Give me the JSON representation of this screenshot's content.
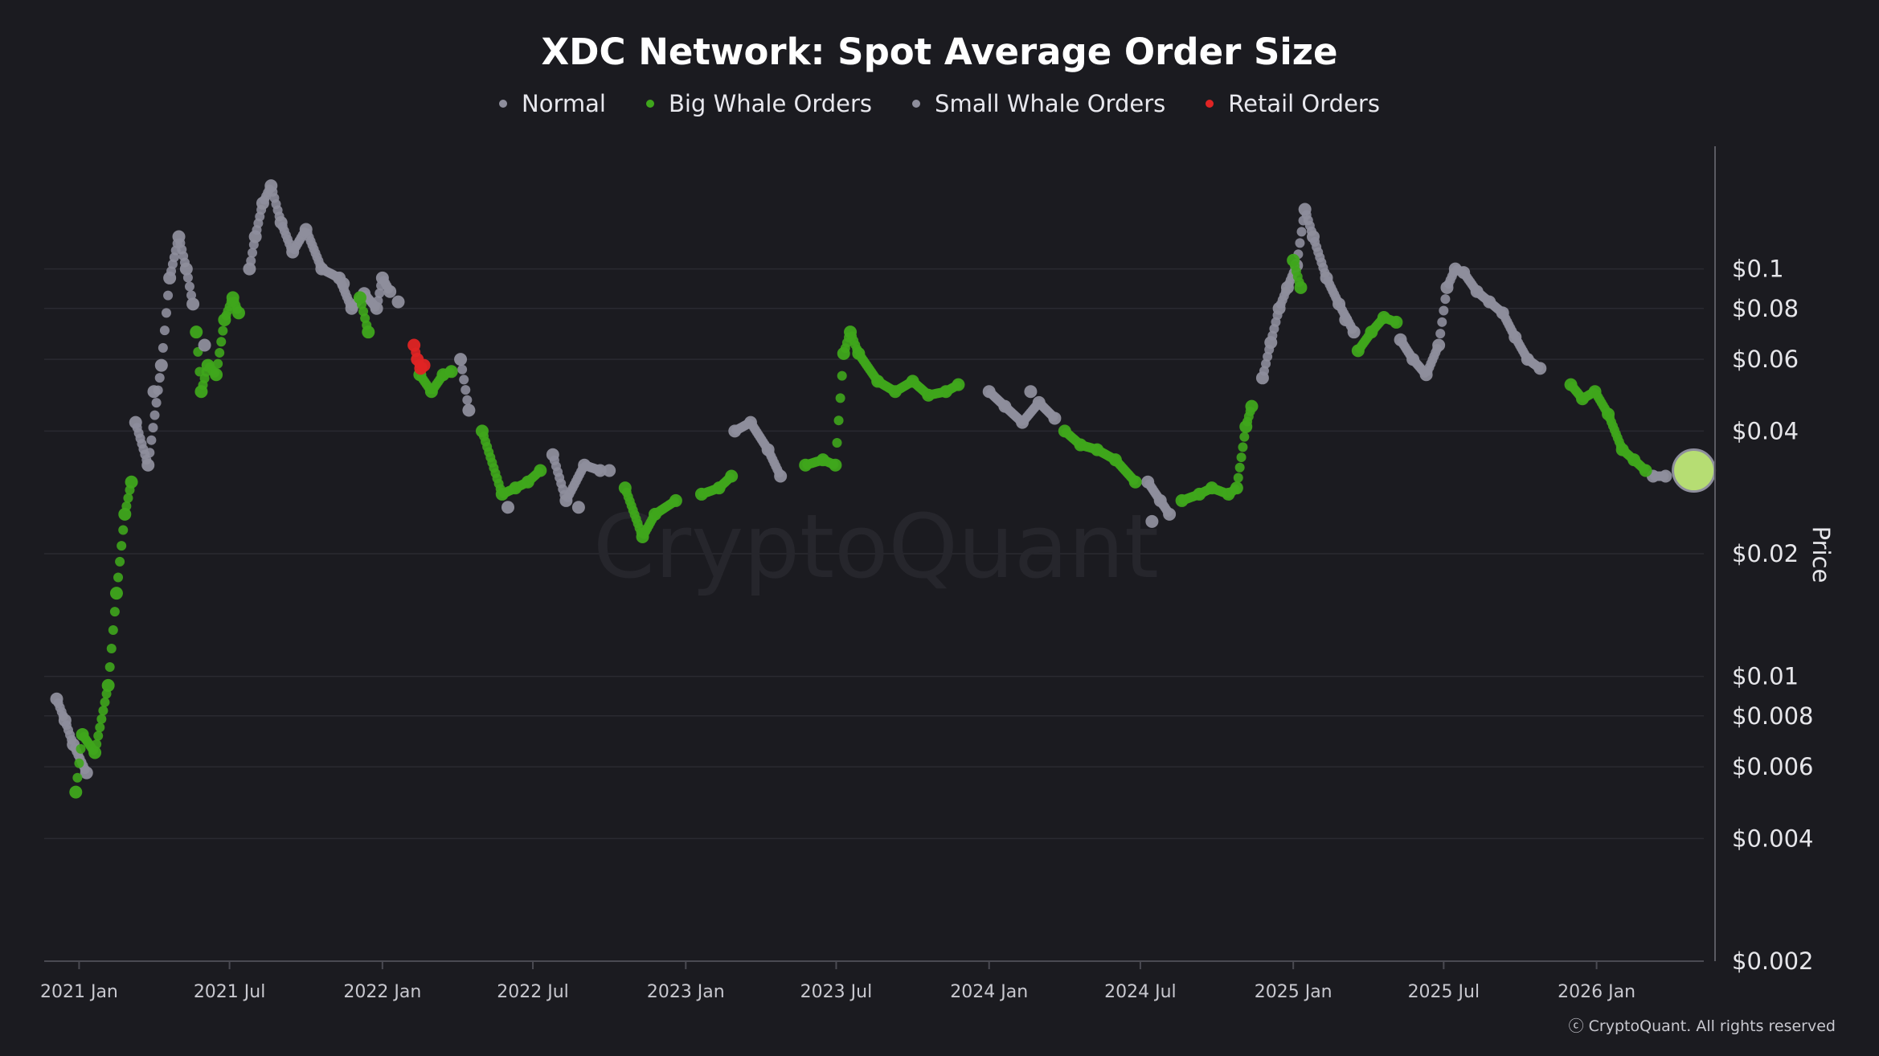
{
  "chart_data": {
    "type": "scatter",
    "title": "XDC Network: Spot Average Order Size",
    "ylabel": "Price",
    "yscale": "log",
    "ylim": [
      0.002,
      0.2
    ],
    "xlim": [
      "2020-11-20",
      "2026-05-10"
    ],
    "y_ticks": [
      {
        "value": 0.1,
        "label": "$0.1"
      },
      {
        "value": 0.08,
        "label": "$0.08"
      },
      {
        "value": 0.06,
        "label": "$0.06"
      },
      {
        "value": 0.04,
        "label": "$0.04"
      },
      {
        "value": 0.02,
        "label": "$0.02"
      },
      {
        "value": 0.01,
        "label": "$0.01"
      },
      {
        "value": 0.008,
        "label": "$0.008"
      },
      {
        "value": 0.006,
        "label": "$0.006"
      },
      {
        "value": 0.004,
        "label": "$0.004"
      },
      {
        "value": 0.002,
        "label": "$0.002"
      }
    ],
    "x_ticks": [
      {
        "date": "2021-01-01",
        "label": "2021 Jan"
      },
      {
        "date": "2021-07-01",
        "label": "2021 Jul"
      },
      {
        "date": "2022-01-01",
        "label": "2022 Jan"
      },
      {
        "date": "2022-07-01",
        "label": "2022 Jul"
      },
      {
        "date": "2023-01-01",
        "label": "2023 Jan"
      },
      {
        "date": "2023-07-01",
        "label": "2023 Jul"
      },
      {
        "date": "2024-01-01",
        "label": "2024 Jan"
      },
      {
        "date": "2024-07-01",
        "label": "2024 Jul"
      },
      {
        "date": "2025-01-01",
        "label": "2025 Jan"
      },
      {
        "date": "2025-07-01",
        "label": "2025 Jul"
      },
      {
        "date": "2026-01-01",
        "label": "2026 Jan"
      }
    ],
    "legend": [
      {
        "name": "Normal",
        "color": "#8e8e9c"
      },
      {
        "name": "Big Whale Orders",
        "color": "#3fa61c"
      },
      {
        "name": "Small Whale Orders",
        "color": "#8e8e9c"
      },
      {
        "name": "Retail Orders",
        "color": "#e02424"
      }
    ],
    "series": [
      {
        "name": "Normal",
        "color": "#8e8e9c",
        "points": [
          [
            "2020-12-05",
            0.0088
          ],
          [
            "2020-12-15",
            0.0078
          ],
          [
            "2020-12-25",
            0.0068
          ],
          [
            "2021-01-10",
            0.0058
          ],
          [
            "2021-03-10",
            0.042
          ],
          [
            "2021-03-25",
            0.033
          ],
          [
            "2021-04-10",
            0.058
          ],
          [
            "2021-04-20",
            0.095
          ],
          [
            "2021-05-01",
            0.12
          ],
          [
            "2021-05-10",
            0.1
          ],
          [
            "2021-05-18",
            0.082
          ],
          [
            "2021-07-25",
            0.1
          ],
          [
            "2021-08-01",
            0.12
          ],
          [
            "2021-08-10",
            0.145
          ],
          [
            "2021-08-20",
            0.16
          ],
          [
            "2021-09-01",
            0.13
          ],
          [
            "2021-09-15",
            0.11
          ],
          [
            "2021-10-01",
            0.125
          ],
          [
            "2021-10-20",
            0.1
          ],
          [
            "2021-11-10",
            0.095
          ],
          [
            "2021-11-25",
            0.08
          ],
          [
            "2021-12-10",
            0.087
          ],
          [
            "2021-12-25",
            0.08
          ],
          [
            "2022-01-01",
            0.095
          ],
          [
            "2022-01-10",
            0.088
          ],
          [
            "2022-04-05",
            0.06
          ],
          [
            "2022-04-15",
            0.045
          ],
          [
            "2022-07-25",
            0.035
          ],
          [
            "2022-08-10",
            0.027
          ],
          [
            "2022-09-01",
            0.033
          ],
          [
            "2022-09-20",
            0.032
          ],
          [
            "2023-03-01",
            0.04
          ],
          [
            "2023-03-20",
            0.042
          ],
          [
            "2023-04-10",
            0.036
          ],
          [
            "2023-04-25",
            0.031
          ],
          [
            "2024-01-01",
            0.05
          ],
          [
            "2024-01-20",
            0.046
          ],
          [
            "2024-02-10",
            0.042
          ],
          [
            "2024-03-01",
            0.047
          ],
          [
            "2024-03-20",
            0.043
          ],
          [
            "2024-07-10",
            0.03
          ],
          [
            "2024-07-25",
            0.027
          ],
          [
            "2024-08-05",
            0.025
          ],
          [
            "2024-11-25",
            0.054
          ],
          [
            "2024-12-05",
            0.066
          ],
          [
            "2024-12-15",
            0.08
          ],
          [
            "2024-12-25",
            0.09
          ],
          [
            "2025-01-05",
            0.102
          ],
          [
            "2025-01-15",
            0.14
          ],
          [
            "2025-01-25",
            0.12
          ],
          [
            "2025-02-10",
            0.095
          ],
          [
            "2025-02-25",
            0.082
          ],
          [
            "2025-03-15",
            0.07
          ],
          [
            "2025-05-10",
            0.067
          ],
          [
            "2025-05-25",
            0.06
          ],
          [
            "2025-06-10",
            0.055
          ],
          [
            "2025-06-25",
            0.065
          ],
          [
            "2025-07-05",
            0.09
          ],
          [
            "2025-07-15",
            0.1
          ],
          [
            "2025-07-25",
            0.098
          ],
          [
            "2025-08-10",
            0.088
          ],
          [
            "2025-08-25",
            0.083
          ],
          [
            "2025-09-10",
            0.078
          ],
          [
            "2025-09-25",
            0.068
          ],
          [
            "2025-10-10",
            0.06
          ],
          [
            "2025-10-25",
            0.057
          ],
          [
            "2026-03-10",
            0.031
          ],
          [
            "2026-03-25",
            0.031
          ]
        ]
      },
      {
        "name": "Big Whale Orders",
        "color": "#3fa61c",
        "points": [
          [
            "2020-12-28",
            0.0052
          ],
          [
            "2021-01-05",
            0.0072
          ],
          [
            "2021-01-20",
            0.0065
          ],
          [
            "2021-02-05",
            0.0095
          ],
          [
            "2021-02-15",
            0.016
          ],
          [
            "2021-02-25",
            0.025
          ],
          [
            "2021-03-05",
            0.03
          ],
          [
            "2021-05-22",
            0.07
          ],
          [
            "2021-05-28",
            0.05
          ],
          [
            "2021-06-05",
            0.058
          ],
          [
            "2021-06-15",
            0.055
          ],
          [
            "2021-06-25",
            0.075
          ],
          [
            "2021-07-05",
            0.085
          ],
          [
            "2021-07-12",
            0.078
          ],
          [
            "2021-12-05",
            0.085
          ],
          [
            "2021-12-15",
            0.07
          ],
          [
            "2022-02-15",
            0.055
          ],
          [
            "2022-03-01",
            0.05
          ],
          [
            "2022-03-15",
            0.055
          ],
          [
            "2022-03-25",
            0.056
          ],
          [
            "2022-05-01",
            0.04
          ],
          [
            "2022-05-25",
            0.028
          ],
          [
            "2022-06-10",
            0.029
          ],
          [
            "2022-06-25",
            0.03
          ],
          [
            "2022-07-10",
            0.032
          ],
          [
            "2022-10-20",
            0.029
          ],
          [
            "2022-11-10",
            0.022
          ],
          [
            "2022-11-25",
            0.025
          ],
          [
            "2022-12-20",
            0.027
          ],
          [
            "2023-01-20",
            0.028
          ],
          [
            "2023-02-10",
            0.029
          ],
          [
            "2023-02-25",
            0.031
          ],
          [
            "2023-05-25",
            0.033
          ],
          [
            "2023-06-15",
            0.034
          ],
          [
            "2023-06-30",
            0.033
          ],
          [
            "2023-07-10",
            0.062
          ],
          [
            "2023-07-18",
            0.07
          ],
          [
            "2023-07-28",
            0.062
          ],
          [
            "2023-08-20",
            0.053
          ],
          [
            "2023-09-10",
            0.05
          ],
          [
            "2023-10-01",
            0.053
          ],
          [
            "2023-10-20",
            0.049
          ],
          [
            "2023-11-10",
            0.05
          ],
          [
            "2023-11-25",
            0.052
          ],
          [
            "2024-04-01",
            0.04
          ],
          [
            "2024-04-20",
            0.037
          ],
          [
            "2024-05-10",
            0.036
          ],
          [
            "2024-06-01",
            0.034
          ],
          [
            "2024-06-25",
            0.03
          ],
          [
            "2024-08-20",
            0.027
          ],
          [
            "2024-09-10",
            0.028
          ],
          [
            "2024-09-25",
            0.029
          ],
          [
            "2024-10-15",
            0.028
          ],
          [
            "2024-10-25",
            0.029
          ],
          [
            "2024-11-05",
            0.041
          ],
          [
            "2024-11-12",
            0.046
          ],
          [
            "2025-01-01",
            0.105
          ],
          [
            "2025-01-10",
            0.09
          ],
          [
            "2025-03-20",
            0.063
          ],
          [
            "2025-04-05",
            0.07
          ],
          [
            "2025-04-20",
            0.076
          ],
          [
            "2025-05-05",
            0.074
          ],
          [
            "2025-12-01",
            0.052
          ],
          [
            "2025-12-15",
            0.048
          ],
          [
            "2025-12-30",
            0.05
          ],
          [
            "2026-01-15",
            0.044
          ],
          [
            "2026-02-01",
            0.036
          ],
          [
            "2026-02-15",
            0.034
          ],
          [
            "2026-03-01",
            0.032
          ],
          [
            "2026-04-15",
            0.032
          ]
        ]
      },
      {
        "name": "Small Whale Orders",
        "color": "#8e8e9c",
        "points": [
          [
            "2021-04-01",
            0.05
          ],
          [
            "2021-06-01",
            0.065
          ],
          [
            "2021-11-15",
            0.092
          ],
          [
            "2022-01-20",
            0.083
          ],
          [
            "2022-06-01",
            0.026
          ],
          [
            "2022-08-25",
            0.026
          ],
          [
            "2022-10-01",
            0.032
          ],
          [
            "2024-02-20",
            0.05
          ],
          [
            "2024-07-15",
            0.024
          ],
          [
            "2025-03-05",
            0.075
          ]
        ]
      },
      {
        "name": "Retail Orders",
        "color": "#e02424",
        "points": [
          [
            "2022-02-08",
            0.065
          ],
          [
            "2022-02-12",
            0.06
          ],
          [
            "2022-02-16",
            0.057
          ],
          [
            "2022-02-20",
            0.058
          ]
        ]
      }
    ],
    "last_point": {
      "date": "2026-04-28",
      "value": 0.032,
      "color": "#b6dd73"
    },
    "watermark": "CryptoQuant",
    "grid": true
  },
  "copyright": "ⓒ CryptoQuant. All rights reserved"
}
